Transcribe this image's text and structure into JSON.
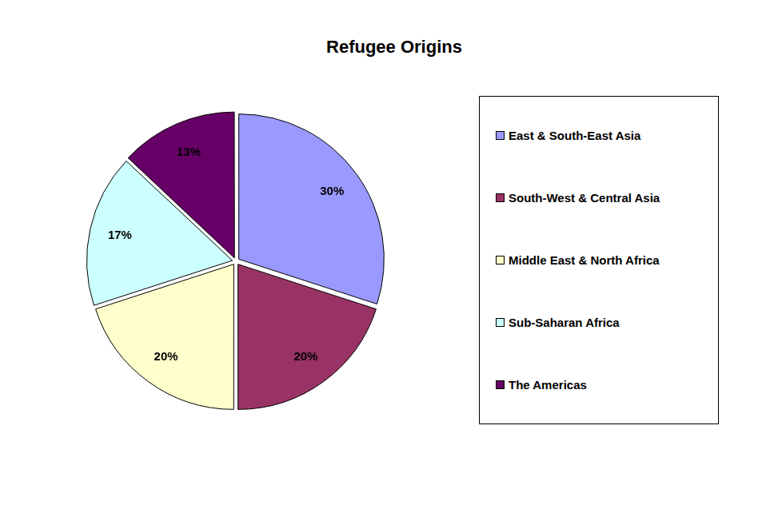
{
  "chart_data": {
    "type": "pie",
    "title": "Refugee Origins",
    "categories": [
      "East & South-East Asia",
      "South-West & Central Asia",
      "Middle East & North Africa",
      "Sub-Saharan Africa",
      "The Americas"
    ],
    "values": [
      30,
      20,
      20,
      17,
      13
    ],
    "value_labels": [
      "30%",
      "20%",
      "20%",
      "17%",
      "13%"
    ],
    "colors": [
      "#9999ff",
      "#993366",
      "#ffffcc",
      "#ccffff",
      "#660066"
    ],
    "data_labels": true,
    "legend": "right"
  }
}
